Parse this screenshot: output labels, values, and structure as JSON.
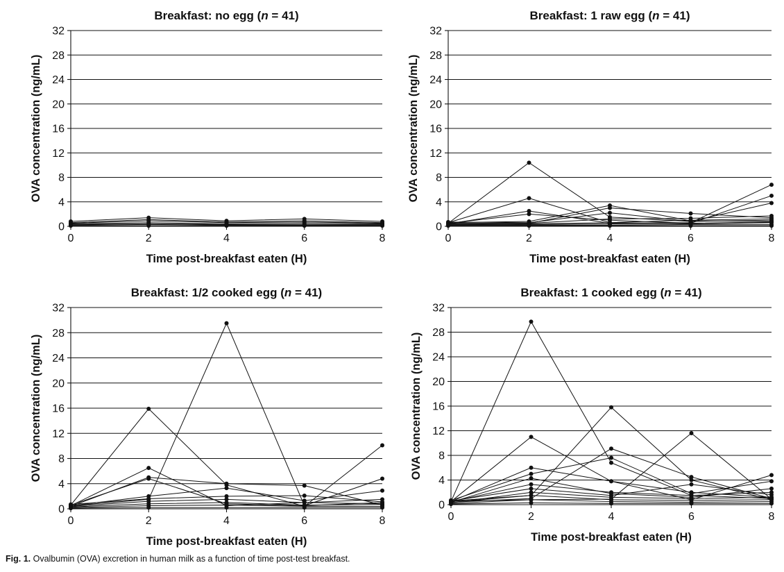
{
  "caption": {
    "label": "Fig. 1.",
    "text": "Ovalbumin (OVA) excretion in human milk as a function of time post-test breakfast."
  },
  "chart_data": [
    {
      "type": "line",
      "title": "Breakfast: no egg (n = 41)",
      "title_parts": {
        "prefix": "Breakfast: no egg (",
        "n_symbol": "n",
        "suffix": " = 41)"
      },
      "xlabel": "Time post-breakfast eaten (H)",
      "ylabel": "OVA concentration (ng/mL)",
      "x": [
        0,
        2,
        4,
        6,
        8
      ],
      "xticks": [
        "0",
        "2",
        "4",
        "6",
        "8"
      ],
      "yticks": [
        "0",
        "4",
        "8",
        "12",
        "16",
        "20",
        "24",
        "28",
        "32"
      ],
      "xlim": [
        0,
        8
      ],
      "ylim": [
        0,
        32
      ],
      "grid": true,
      "series": [
        {
          "values": [
            0.8,
            1.4,
            0.9,
            1.2,
            0.8
          ]
        },
        {
          "values": [
            0.6,
            1.1,
            0.7,
            0.9,
            0.6
          ]
        },
        {
          "values": [
            0.5,
            0.9,
            0.6,
            0.7,
            0.5
          ]
        },
        {
          "values": [
            0.4,
            0.6,
            0.4,
            0.5,
            0.4
          ]
        },
        {
          "values": [
            0.3,
            0.4,
            0.3,
            0.3,
            0.3
          ]
        },
        {
          "values": [
            0.2,
            0.3,
            0.2,
            0.2,
            0.2
          ]
        },
        {
          "values": [
            0.1,
            0.1,
            0.1,
            0.1,
            0.1
          ]
        }
      ]
    },
    {
      "type": "line",
      "title": "Breakfast: 1 raw egg (n = 41)",
      "title_parts": {
        "prefix": "Breakfast: 1 raw egg (",
        "n_symbol": "n",
        "suffix": " = 41)"
      },
      "xlabel": "Time post-breakfast eaten (H)",
      "ylabel": "OVA concentration (ng/mL)",
      "x": [
        0,
        2,
        4,
        6,
        8
      ],
      "xticks": [
        "0",
        "2",
        "4",
        "6",
        "8"
      ],
      "yticks": [
        "0",
        "4",
        "8",
        "12",
        "16",
        "20",
        "24",
        "28",
        "32"
      ],
      "xlim": [
        0,
        8
      ],
      "ylim": [
        0,
        32
      ],
      "grid": true,
      "series": [
        {
          "values": [
            0.5,
            10.4,
            1.5,
            0.8,
            1.0
          ]
        },
        {
          "values": [
            0.6,
            4.6,
            0.6,
            0.4,
            0.6
          ]
        },
        {
          "values": [
            0.4,
            2.5,
            0.5,
            0.6,
            6.8
          ]
        },
        {
          "values": [
            0.5,
            2.0,
            1.0,
            0.5,
            5.0
          ]
        },
        {
          "values": [
            0.6,
            0.8,
            3.4,
            0.9,
            0.8
          ]
        },
        {
          "values": [
            0.4,
            0.5,
            3.0,
            2.1,
            1.4
          ]
        },
        {
          "values": [
            0.7,
            0.6,
            2.2,
            0.8,
            3.8
          ]
        },
        {
          "values": [
            0.5,
            0.5,
            1.2,
            1.3,
            1.7
          ]
        },
        {
          "values": [
            0.3,
            0.4,
            0.6,
            1.0,
            1.2
          ]
        },
        {
          "values": [
            0.2,
            0.3,
            0.4,
            0.5,
            0.7
          ]
        },
        {
          "values": [
            0.2,
            0.2,
            0.2,
            0.3,
            0.3
          ]
        },
        {
          "values": [
            0.1,
            0.1,
            0.1,
            0.1,
            0.1
          ]
        }
      ]
    },
    {
      "type": "line",
      "title": "Breakfast: 1/2 cooked egg (n = 41)",
      "title_parts": {
        "prefix": "Breakfast: 1/2 cooked egg (",
        "n_symbol": "n",
        "suffix": " = 41)"
      },
      "xlabel": "Time post-breakfast eaten (H)",
      "ylabel": "OVA concentration (ng/mL)",
      "x": [
        0,
        2,
        4,
        6,
        8
      ],
      "xticks": [
        "0",
        "2",
        "4",
        "6",
        "8"
      ],
      "yticks": [
        "0",
        "4",
        "8",
        "12",
        "16",
        "20",
        "24",
        "28",
        "32"
      ],
      "xlim": [
        0,
        8
      ],
      "ylim": [
        0,
        32
      ],
      "grid": true,
      "series": [
        {
          "values": [
            0.5,
            1.5,
            29.5,
            0.5,
            1.0
          ]
        },
        {
          "values": [
            0.6,
            15.9,
            3.8,
            0.4,
            10.1
          ]
        },
        {
          "values": [
            0.5,
            6.5,
            0.5,
            1.0,
            0.8
          ]
        },
        {
          "values": [
            0.4,
            5.0,
            4.0,
            3.7,
            0.6
          ]
        },
        {
          "values": [
            0.6,
            4.8,
            0.8,
            0.5,
            4.8
          ]
        },
        {
          "values": [
            0.5,
            2.0,
            3.3,
            1.3,
            2.9
          ]
        },
        {
          "values": [
            0.7,
            1.6,
            2.0,
            2.1,
            1.1
          ]
        },
        {
          "values": [
            0.4,
            1.2,
            1.5,
            1.0,
            1.5
          ]
        },
        {
          "values": [
            0.3,
            0.8,
            1.0,
            0.6,
            0.7
          ]
        },
        {
          "values": [
            0.2,
            0.5,
            0.6,
            0.4,
            0.4
          ]
        },
        {
          "values": [
            0.1,
            0.2,
            0.2,
            0.2,
            0.2
          ]
        }
      ]
    },
    {
      "type": "line",
      "title": "Breakfast: 1 cooked egg (n = 41)",
      "title_parts": {
        "prefix": "Breakfast: 1 cooked egg (",
        "n_symbol": "n",
        "suffix": " = 41)"
      },
      "xlabel": "Time post-breakfast eaten (H)",
      "ylabel": "OVA concentration (ng/mL)",
      "x": [
        0,
        2,
        4,
        6,
        8
      ],
      "xticks": [
        "0",
        "2",
        "4",
        "6",
        "8"
      ],
      "yticks": [
        "0",
        "4",
        "8",
        "12",
        "16",
        "20",
        "24",
        "28",
        "32"
      ],
      "xlim": [
        0,
        8
      ],
      "ylim": [
        0,
        32
      ],
      "grid": true,
      "series": [
        {
          "values": [
            0.5,
            29.7,
            6.8,
            1.5,
            1.0
          ]
        },
        {
          "values": [
            0.6,
            1.5,
            15.8,
            4.0,
            0.8
          ]
        },
        {
          "values": [
            0.5,
            11.0,
            3.8,
            2.0,
            1.2
          ]
        },
        {
          "values": [
            0.4,
            1.0,
            9.1,
            4.5,
            1.0
          ]
        },
        {
          "values": [
            0.6,
            0.8,
            0.9,
            11.6,
            0.9
          ]
        },
        {
          "values": [
            0.5,
            6.0,
            3.8,
            0.8,
            4.8
          ]
        },
        {
          "values": [
            0.7,
            5.0,
            7.6,
            1.8,
            3.8
          ]
        },
        {
          "values": [
            0.4,
            4.3,
            1.8,
            1.2,
            2.6
          ]
        },
        {
          "values": [
            0.5,
            3.3,
            2.0,
            1.5,
            2.0
          ]
        },
        {
          "values": [
            0.6,
            2.6,
            1.5,
            3.3,
            1.6
          ]
        },
        {
          "values": [
            0.3,
            2.0,
            1.2,
            1.0,
            1.2
          ]
        },
        {
          "values": [
            0.4,
            1.5,
            0.8,
            0.7,
            0.8
          ]
        },
        {
          "values": [
            0.2,
            0.8,
            0.5,
            0.4,
            0.5
          ]
        },
        {
          "values": [
            0.1,
            0.3,
            0.2,
            0.2,
            0.2
          ]
        }
      ]
    }
  ]
}
